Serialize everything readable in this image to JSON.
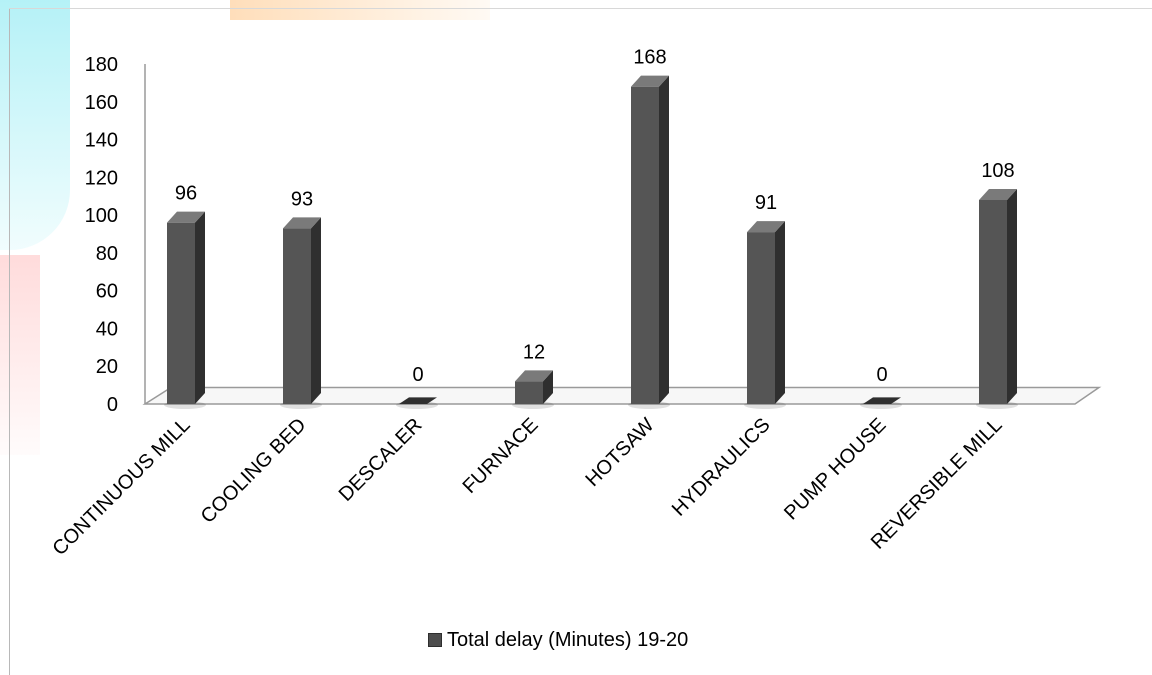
{
  "colors": {
    "bar_front": "#555555",
    "bar_side": "#2f2f2f",
    "bar_top": "#7a7a7a",
    "axis": "#9a9a9a"
  },
  "chart_data": {
    "type": "bar",
    "categories": [
      "CONTINUOUS MILL",
      "COOLING BED",
      "DESCALER",
      "FURNACE",
      "HOTSAW",
      "HYDRAULICS",
      "PUMP HOUSE",
      "REVERSIBLE MILL"
    ],
    "series": [
      {
        "name": "Total delay (Minutes) 19-20",
        "values": [
          96,
          93,
          0,
          12,
          168,
          91,
          0,
          108
        ]
      }
    ],
    "yticks": [
      0,
      20,
      40,
      60,
      80,
      100,
      120,
      140,
      160,
      180
    ],
    "ylim": [
      0,
      180
    ],
    "data_labels": true,
    "grid": false,
    "legend": "bottom",
    "style": "3d"
  }
}
